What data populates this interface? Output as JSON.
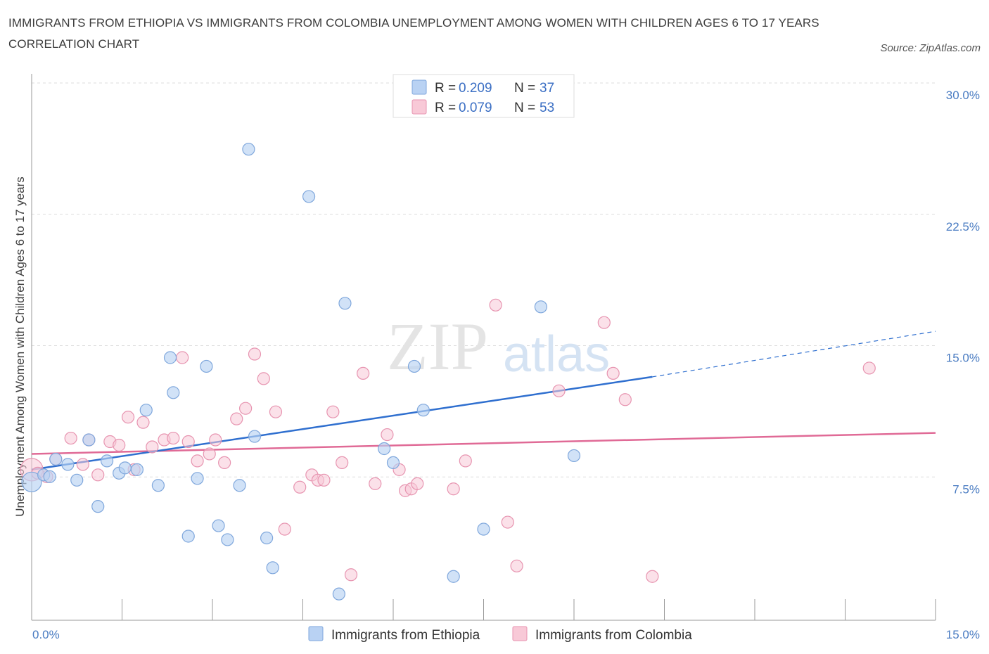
{
  "title": "IMMIGRANTS FROM ETHIOPIA VS IMMIGRANTS FROM COLOMBIA UNEMPLOYMENT AMONG WOMEN WITH CHILDREN AGES 6 TO 17 YEARS CORRELATION CHART",
  "source": "Source: ZipAtlas.com",
  "watermark": {
    "zip": "ZIP",
    "atlas": "atlas"
  },
  "colors": {
    "ethiopia_fill": "#b9d2f3",
    "ethiopia_stroke": "#7fa7dc",
    "ethiopia_line": "#2f6fcf",
    "colombia_fill": "#f8c9d7",
    "colombia_stroke": "#e794b0",
    "colombia_line": "#e06a96",
    "axis_text": "#4a7cc2",
    "grid": "#dddddd"
  },
  "legend": {
    "rows": [
      {
        "r_label": "R = ",
        "r_value": "0.209",
        "n_label": "N = ",
        "n_value": "37"
      },
      {
        "r_label": "R = ",
        "r_value": "0.079",
        "n_label": "N = ",
        "n_value": "53"
      }
    ]
  },
  "chart_data": {
    "type": "scatter",
    "title": "IMMIGRANTS FROM ETHIOPIA VS IMMIGRANTS FROM COLOMBIA UNEMPLOYMENT AMONG WOMEN WITH CHILDREN AGES 6 TO 17 YEARS CORRELATION CHART",
    "xlabel": "",
    "ylabel": "Unemployment Among Women with Children Ages 6 to 17 years",
    "xlim": [
      0,
      15
    ],
    "ylim": [
      0,
      30
    ],
    "x_tick_labels": [
      "0.0%",
      "15.0%"
    ],
    "y_ticks": [
      7.5,
      15.0,
      22.5,
      30.0
    ],
    "y_tick_labels": [
      "7.5%",
      "15.0%",
      "22.5%",
      "30.0%"
    ],
    "grid": "horizontal dashed",
    "legend_position": "top-center",
    "series": [
      {
        "name": "Immigrants from Ethiopia",
        "r": 0.209,
        "n": 37,
        "trend": {
          "x0": 0.0,
          "y0": 8.6,
          "x1": 10.3,
          "y1": 13.9,
          "dashed_to_x": 15.0,
          "dashed_to_y": 16.5
        },
        "points": [
          [
            0.0,
            7.9
          ],
          [
            0.2,
            8.3
          ],
          [
            0.4,
            9.2
          ],
          [
            0.6,
            8.9
          ],
          [
            0.75,
            8.0
          ],
          [
            0.95,
            10.3
          ],
          [
            1.1,
            6.5
          ],
          [
            1.25,
            9.1
          ],
          [
            1.45,
            8.4
          ],
          [
            1.55,
            8.7
          ],
          [
            1.75,
            8.6
          ],
          [
            1.9,
            12.0
          ],
          [
            2.1,
            7.7
          ],
          [
            2.3,
            15.0
          ],
          [
            2.35,
            13.0
          ],
          [
            2.6,
            4.8
          ],
          [
            2.75,
            8.1
          ],
          [
            2.9,
            14.5
          ],
          [
            3.1,
            5.4
          ],
          [
            3.25,
            4.6
          ],
          [
            3.45,
            7.7
          ],
          [
            3.6,
            26.9
          ],
          [
            3.7,
            10.5
          ],
          [
            3.9,
            4.7
          ],
          [
            4.0,
            3.0
          ],
          [
            4.6,
            24.2
          ],
          [
            5.1,
            1.5
          ],
          [
            5.2,
            18.1
          ],
          [
            5.85,
            9.8
          ],
          [
            6.0,
            9.0
          ],
          [
            6.35,
            14.5
          ],
          [
            6.5,
            12.0
          ],
          [
            7.0,
            2.5
          ],
          [
            7.5,
            5.2
          ],
          [
            8.45,
            17.9
          ],
          [
            9.0,
            9.4
          ],
          [
            0.3,
            8.2
          ]
        ]
      },
      {
        "name": "Immigrants from Colombia",
        "r": 0.079,
        "n": 53,
        "trend": {
          "x0": 0.0,
          "y0": 9.5,
          "x1": 15.0,
          "y1": 10.7
        },
        "points": [
          [
            0.0,
            8.6
          ],
          [
            0.25,
            8.2
          ],
          [
            0.4,
            9.2
          ],
          [
            0.65,
            10.4
          ],
          [
            0.85,
            8.9
          ],
          [
            0.95,
            10.3
          ],
          [
            1.1,
            8.3
          ],
          [
            1.3,
            10.2
          ],
          [
            1.45,
            10.0
          ],
          [
            1.6,
            11.6
          ],
          [
            1.7,
            8.6
          ],
          [
            1.85,
            11.3
          ],
          [
            2.0,
            9.9
          ],
          [
            2.2,
            10.3
          ],
          [
            2.35,
            10.4
          ],
          [
            2.5,
            15.0
          ],
          [
            2.6,
            10.2
          ],
          [
            2.75,
            9.1
          ],
          [
            2.95,
            9.5
          ],
          [
            3.05,
            10.3
          ],
          [
            3.2,
            9.0
          ],
          [
            3.4,
            11.5
          ],
          [
            3.55,
            12.1
          ],
          [
            3.7,
            15.2
          ],
          [
            3.85,
            13.8
          ],
          [
            4.05,
            11.9
          ],
          [
            4.2,
            5.2
          ],
          [
            4.45,
            7.6
          ],
          [
            4.65,
            8.3
          ],
          [
            4.75,
            8.0
          ],
          [
            4.85,
            8.0
          ],
          [
            5.0,
            11.9
          ],
          [
            5.15,
            9.0
          ],
          [
            5.3,
            2.6
          ],
          [
            5.5,
            14.1
          ],
          [
            5.7,
            7.8
          ],
          [
            5.9,
            10.6
          ],
          [
            6.1,
            8.6
          ],
          [
            6.2,
            7.4
          ],
          [
            6.3,
            7.5
          ],
          [
            6.4,
            7.8
          ],
          [
            7.0,
            7.5
          ],
          [
            7.2,
            9.1
          ],
          [
            7.7,
            18.0
          ],
          [
            7.9,
            5.6
          ],
          [
            8.05,
            3.1
          ],
          [
            8.75,
            13.1
          ],
          [
            9.5,
            17.0
          ],
          [
            9.65,
            14.1
          ],
          [
            9.85,
            12.6
          ],
          [
            10.3,
            2.5
          ],
          [
            13.9,
            14.4
          ],
          [
            0.1,
            8.4
          ]
        ]
      }
    ]
  },
  "bottom_legend": [
    {
      "label": "Immigrants from Ethiopia"
    },
    {
      "label": "Immigrants from Colombia"
    }
  ]
}
